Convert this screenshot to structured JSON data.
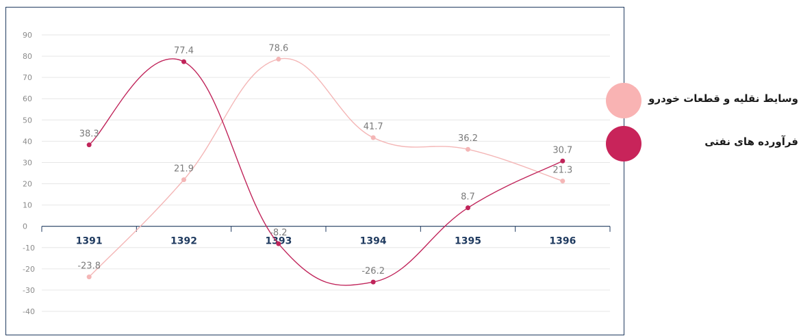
{
  "chart_data": {
    "type": "line",
    "categories": [
      "1391",
      "1392",
      "1393",
      "1394",
      "1395",
      "1396"
    ],
    "ylim": [
      -40,
      90
    ],
    "yticks": [
      90,
      80,
      70,
      60,
      50,
      40,
      30,
      20,
      10,
      0,
      -10,
      -20,
      -30,
      -40
    ],
    "grid": true,
    "legend_position": "right",
    "series": [
      {
        "name": "وسایط نقلیه و قطعات خودرو",
        "color": "#f4b6b6",
        "values": [
          -23.8,
          21.9,
          78.6,
          41.7,
          36.2,
          21.3
        ],
        "labels": [
          "-23.8",
          "21.9",
          "78.6",
          "41.7",
          "36.2",
          "21.3"
        ]
      },
      {
        "name": "فرآورده های نفتی",
        "color": "#c0245a",
        "values": [
          38.3,
          77.4,
          -8.2,
          -26.2,
          8.7,
          30.7
        ],
        "labels": [
          "38.3",
          "77.4",
          "-8.2",
          "-26.2",
          "8.7",
          "30.7"
        ]
      }
    ]
  },
  "legend": {
    "items": [
      {
        "label": "وسایط نقلیه و قطعات خودرو",
        "color": "#f9b3b3"
      },
      {
        "label": "فرآورده های نفتی",
        "color": "#c8245a"
      }
    ]
  }
}
